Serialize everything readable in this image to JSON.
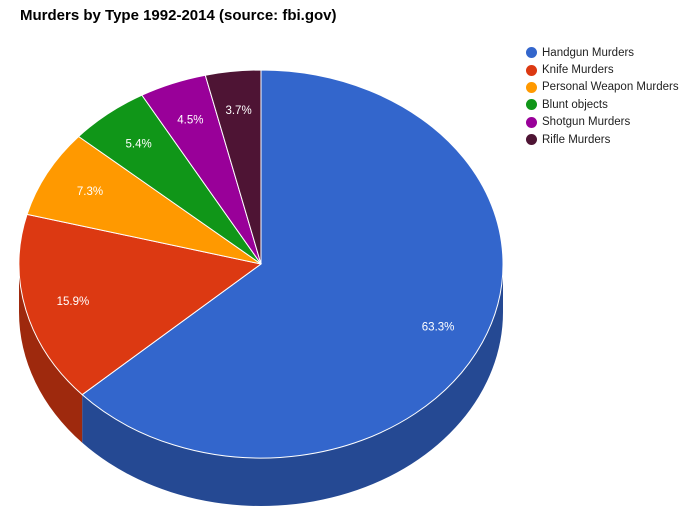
{
  "chart_data": {
    "type": "pie",
    "title": "Murders by Type 1992-2014 (source: fbi.gov)",
    "legend_position": "right",
    "three_d": true,
    "slices": [
      {
        "label": "Handgun Murders",
        "value": 63.3,
        "value_label": "63.3%",
        "color": "#3366cc"
      },
      {
        "label": "Knife Murders",
        "value": 15.9,
        "value_label": "15.9%",
        "color": "#dc3912"
      },
      {
        "label": "Personal Weapon Murders",
        "value": 7.3,
        "value_label": "7.3%",
        "color": "#ff9900"
      },
      {
        "label": "Blunt objects",
        "value": 5.4,
        "value_label": "5.4%",
        "color": "#109618"
      },
      {
        "label": "Shotgun Murders",
        "value": 4.5,
        "value_label": "4.5%",
        "color": "#990099"
      },
      {
        "label": "Rifle Murders",
        "value": 3.7,
        "value_label": "3.7%",
        "color": "#4e1434"
      }
    ]
  }
}
